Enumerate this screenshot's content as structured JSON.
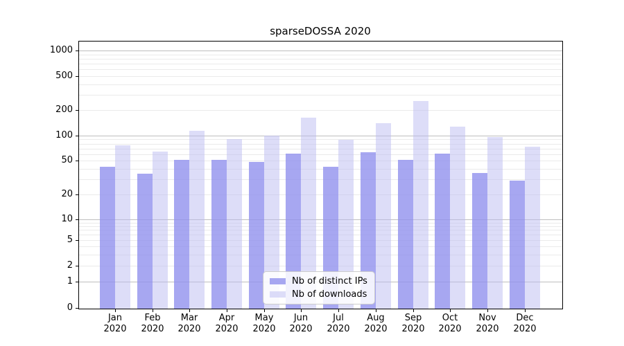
{
  "chart_data": {
    "type": "bar",
    "title": "sparseDOSSA 2020",
    "categories": [
      "Jan",
      "Feb",
      "Mar",
      "Apr",
      "May",
      "Jun",
      "Jul",
      "Aug",
      "Sep",
      "Oct",
      "Nov",
      "Dec"
    ],
    "category_sublabel": "2020",
    "series": [
      {
        "name": "Nb of distinct IPs",
        "color": "rgba(145,145,237,0.8)",
        "values": [
          42,
          35,
          51,
          51,
          48,
          61,
          42,
          63,
          51,
          61,
          36,
          29
        ]
      },
      {
        "name": "Nb of downloads",
        "color": "rgba(187,187,242,0.5)",
        "values": [
          76,
          64,
          115,
          91,
          100,
          162,
          89,
          140,
          254,
          128,
          97,
          74
        ]
      }
    ],
    "yticks": [
      0,
      1,
      2,
      5,
      10,
      20,
      50,
      100,
      200,
      500,
      1000
    ],
    "yscale": "log (linear segment near zero)",
    "ylim": [
      0,
      1300
    ],
    "xlabel": "",
    "ylabel": "",
    "grid": "horizontal major and minor log gridlines",
    "legend_position": "lower center inside axes"
  },
  "colors": {
    "major_grid": "#bdbdbd",
    "minor_grid": "#eaeaea",
    "axis": "#000000",
    "background": "#ffffff"
  }
}
